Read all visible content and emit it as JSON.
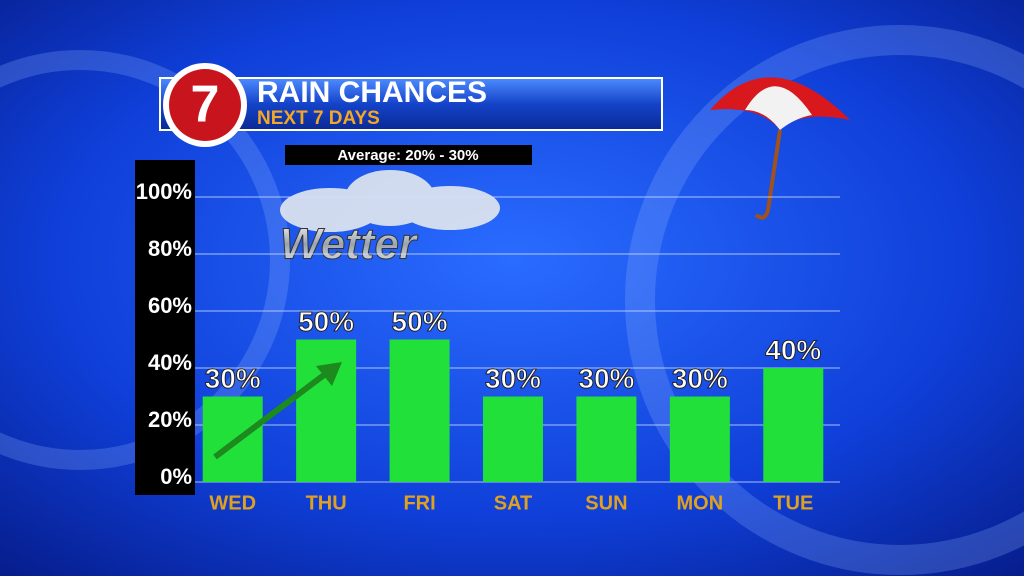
{
  "chart_data": {
    "type": "bar",
    "title": "RAIN CHANCES",
    "subtitle": "NEXT 7 DAYS",
    "logo": "7",
    "annotations": [
      "Average: 20% - 30%",
      "Wetter"
    ],
    "categories": [
      "WED",
      "THU",
      "FRI",
      "SAT",
      "SUN",
      "MON",
      "TUE"
    ],
    "values": [
      30,
      50,
      50,
      30,
      30,
      30,
      40
    ],
    "value_labels": [
      "30%",
      "50%",
      "50%",
      "30%",
      "30%",
      "30%",
      "40%"
    ],
    "color": "#22e03a",
    "ylim": [
      0,
      100
    ],
    "yticks": [
      {
        "value": 0,
        "label": "0%"
      },
      {
        "value": 20,
        "label": "20%"
      },
      {
        "value": 40,
        "label": "40%"
      },
      {
        "value": 60,
        "label": "60%"
      },
      {
        "value": 80,
        "label": "80%"
      },
      {
        "value": 100,
        "label": "100%"
      }
    ],
    "grid": true
  }
}
